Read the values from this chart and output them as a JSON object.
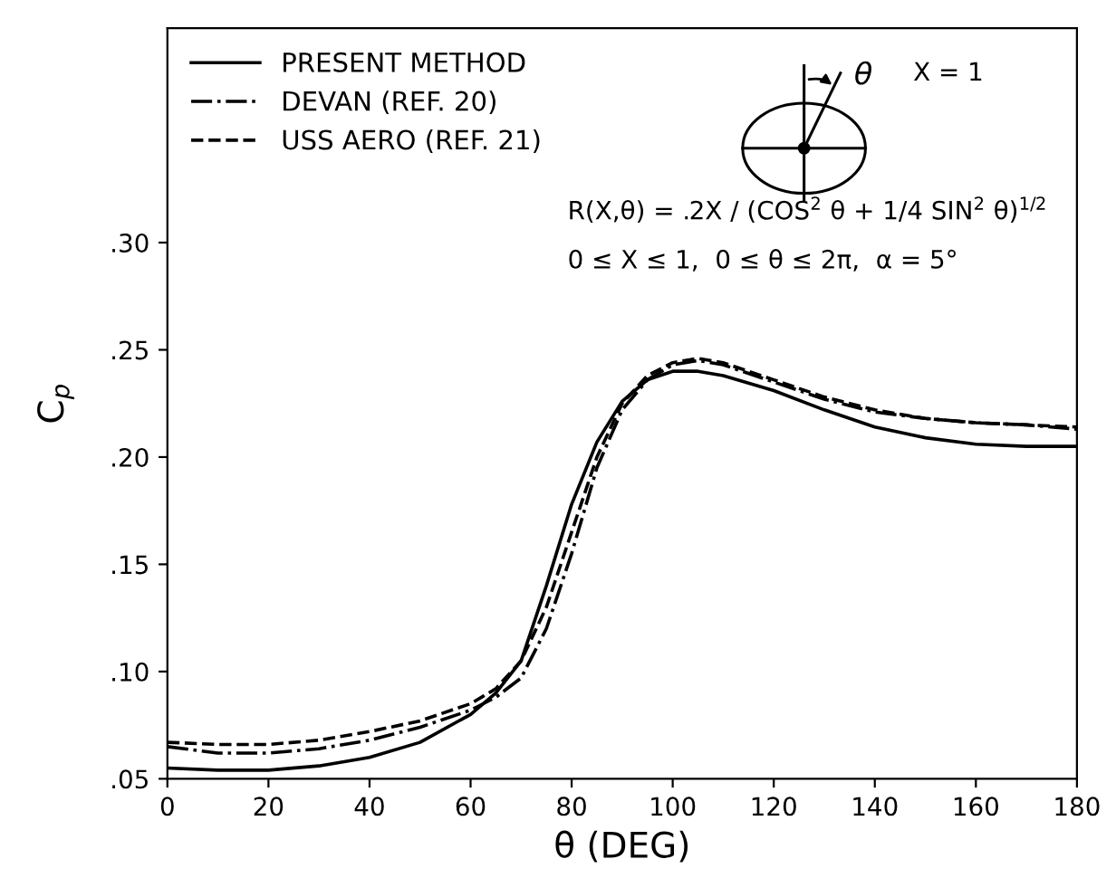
{
  "chart_data": {
    "type": "line",
    "xlabel": "θ (DEG)",
    "ylabel": "C$_{p}$",
    "x": [
      0,
      10,
      20,
      30,
      40,
      50,
      60,
      65,
      70,
      75,
      80,
      85,
      90,
      95,
      100,
      105,
      110,
      120,
      130,
      140,
      150,
      160,
      170,
      180
    ],
    "series": [
      {
        "name": "PRESENT METHOD",
        "color": "#000000",
        "line_style": "solid",
        "values": [
          0.055,
          0.054,
          0.054,
          0.056,
          0.06,
          0.067,
          0.08,
          0.09,
          0.105,
          0.14,
          0.178,
          0.207,
          0.226,
          0.236,
          0.24,
          0.24,
          0.238,
          0.231,
          0.222,
          0.214,
          0.209,
          0.206,
          0.205,
          0.205
        ]
      },
      {
        "name": "DEVAN (REF. 20)",
        "color": "#000000",
        "line_style": "dashdot",
        "values": [
          0.065,
          0.062,
          0.062,
          0.064,
          0.068,
          0.074,
          0.082,
          0.088,
          0.097,
          0.12,
          0.155,
          0.195,
          0.222,
          0.236,
          0.243,
          0.245,
          0.243,
          0.235,
          0.227,
          0.221,
          0.218,
          0.216,
          0.215,
          0.213
        ]
      },
      {
        "name": "USS AERO (REF. 21)",
        "color": "#000000",
        "line_style": "dashed",
        "values": [
          0.067,
          0.066,
          0.066,
          0.068,
          0.072,
          0.077,
          0.085,
          0.092,
          0.105,
          0.13,
          0.165,
          0.2,
          0.225,
          0.238,
          0.244,
          0.246,
          0.244,
          0.236,
          0.228,
          0.222,
          0.218,
          0.216,
          0.215,
          0.214
        ]
      }
    ],
    "xlim": [
      0,
      180
    ],
    "xticks": [
      0,
      20,
      40,
      60,
      80,
      100,
      120,
      140,
      160,
      180
    ],
    "ylim": [
      0.05,
      0.4
    ],
    "yticks": [
      {
        "value": 0.05,
        "label": ".05"
      },
      {
        "value": 0.1,
        "label": ".10"
      },
      {
        "value": 0.15,
        "label": ".15"
      },
      {
        "value": 0.2,
        "label": ".20"
      },
      {
        "value": 0.25,
        "label": ".25"
      },
      {
        "value": 0.3,
        "label": ".30"
      }
    ],
    "annotations": [
      "θ",
      "X = 1",
      "R(X,θ) = .2X / (COS$^{2}$ θ + 1/4 SIN$^{2}$ θ)$^{1/2}$",
      "0 ≤ X ≤ 1,  0 ≤ θ ≤ 2π,  α = 5°"
    ],
    "legend": "top left",
    "grid": false,
    "marker": "none"
  }
}
